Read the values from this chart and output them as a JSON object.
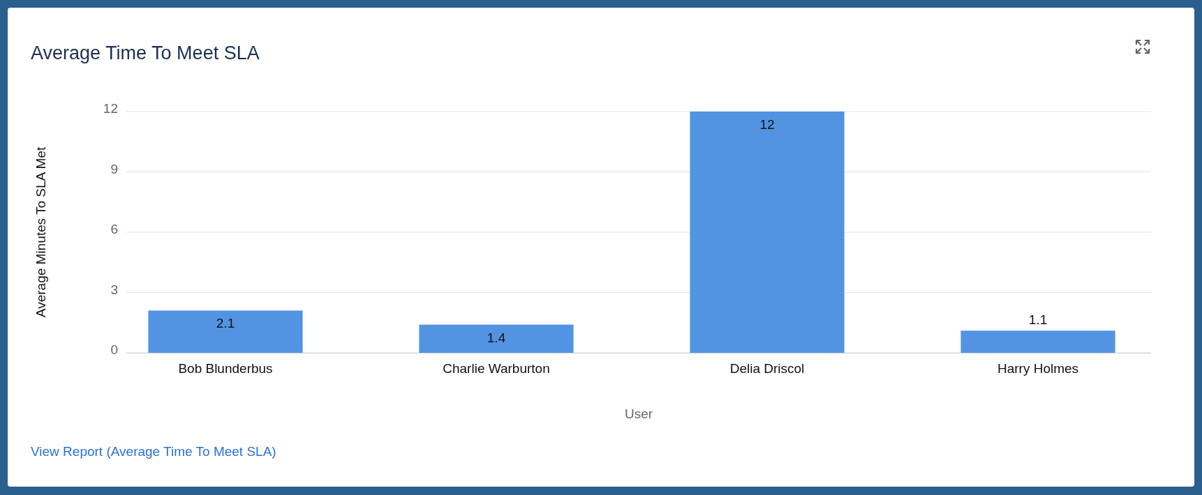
{
  "chart_data": {
    "type": "bar",
    "title": "Average Time To Meet SLA",
    "xlabel": "User",
    "ylabel": "Average Minutes To SLA Met",
    "categories": [
      "Bob Blunderbus",
      "Charlie Warburton",
      "Delia Driscol",
      "Harry Holmes"
    ],
    "values": [
      2.1,
      1.4,
      12,
      1.1
    ],
    "color": "#5294e2",
    "ylim": [
      0,
      12
    ],
    "yticks": [
      0,
      3,
      6,
      9,
      12
    ],
    "grid": "y",
    "data_labels": true,
    "annotations": [
      "View Report (Average Time To Meet SLA)"
    ]
  }
}
